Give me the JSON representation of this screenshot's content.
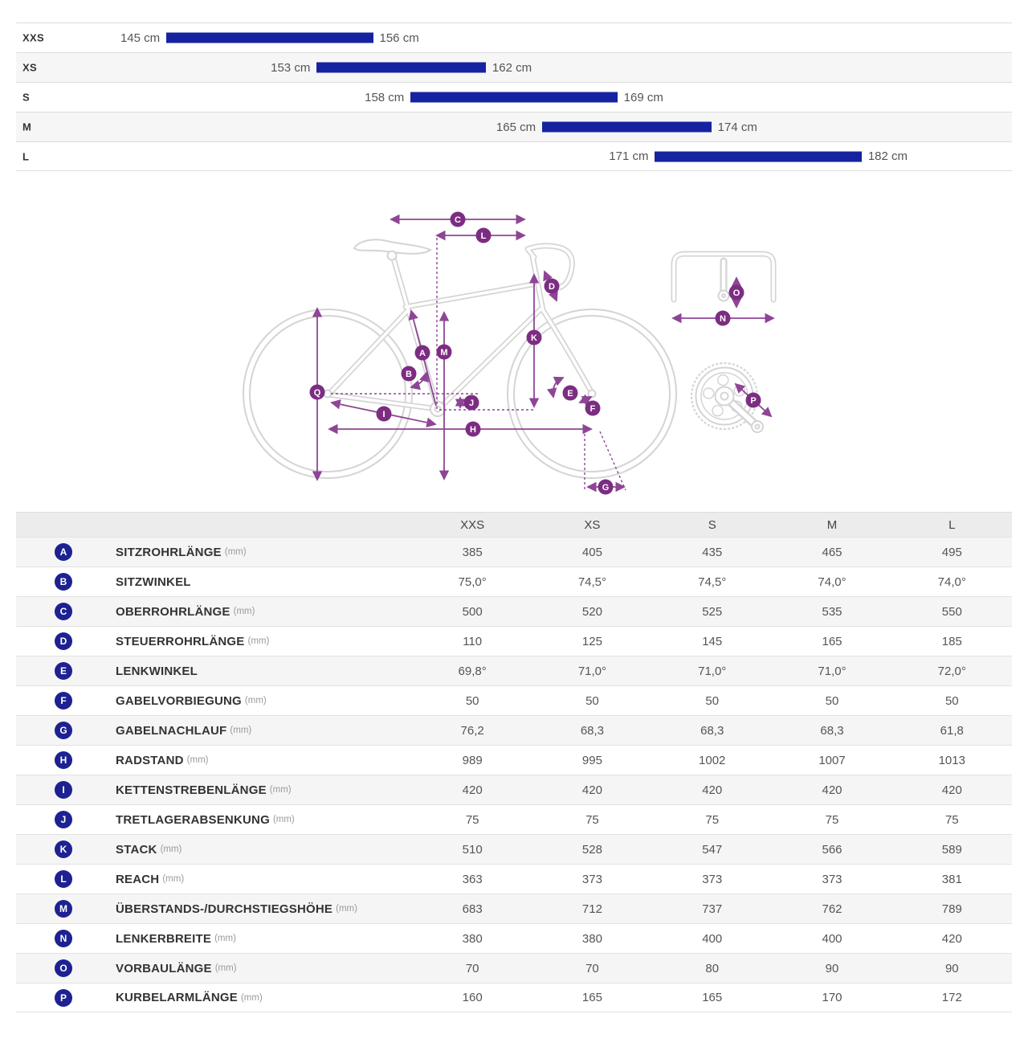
{
  "colors": {
    "bar_blue": "#1623a0",
    "badge_navy": "#1d2191",
    "diagram_purple": "#8e4595",
    "diagram_badge_purple": "#7c2d82",
    "bike_outline_gray": "#d4d4d4",
    "row_alt_gray": "#f5f5f5"
  },
  "diagram": {
    "letters": {
      "a": "A",
      "b": "B",
      "c": "C",
      "d": "D",
      "e": "E",
      "f": "F",
      "g": "G",
      "h": "H",
      "i": "I",
      "j": "J",
      "k": "K",
      "l": "L",
      "m": "M",
      "n": "N",
      "o": "O",
      "p": "P",
      "q": "Q"
    }
  },
  "chart_data": [
    {
      "type": "bar",
      "subtype": "horizontal-range",
      "title": "",
      "xlabel": "",
      "ylabel": "",
      "x_unit": "cm",
      "xlim": [
        137,
        190
      ],
      "grid": false,
      "legend": "none",
      "bar_color": "#1623a0",
      "categories": [
        "XXS",
        "XS",
        "S",
        "M",
        "L"
      ],
      "series": [
        {
          "name": "rider_height_range_cm",
          "ranges": [
            {
              "min": 145,
              "max": 156
            },
            {
              "min": 153,
              "max": 162
            },
            {
              "min": 158,
              "max": 169
            },
            {
              "min": 165,
              "max": 174
            },
            {
              "min": 171,
              "max": 182
            }
          ]
        }
      ],
      "labels": [
        {
          "min_label": "145 cm",
          "max_label": "156 cm"
        },
        {
          "min_label": "153 cm",
          "max_label": "162 cm"
        },
        {
          "min_label": "158 cm",
          "max_label": "169 cm"
        },
        {
          "min_label": "165 cm",
          "max_label": "174 cm"
        },
        {
          "min_label": "171 cm",
          "max_label": "182 cm"
        }
      ]
    },
    {
      "type": "table",
      "columns": [
        "",
        "XXS",
        "XS",
        "S",
        "M",
        "L"
      ],
      "rows": [
        {
          "letter": "A",
          "label": "SITZROHRLÄNGE",
          "unit": "(mm)",
          "values": [
            "385",
            "405",
            "435",
            "465",
            "495"
          ]
        },
        {
          "letter": "B",
          "label": "SITZWINKEL",
          "unit": "",
          "values": [
            "75,0°",
            "74,5°",
            "74,5°",
            "74,0°",
            "74,0°"
          ]
        },
        {
          "letter": "C",
          "label": "OBERROHRLÄNGE",
          "unit": "(mm)",
          "values": [
            "500",
            "520",
            "525",
            "535",
            "550"
          ]
        },
        {
          "letter": "D",
          "label": "STEUERROHRLÄNGE",
          "unit": "(mm)",
          "values": [
            "110",
            "125",
            "145",
            "165",
            "185"
          ]
        },
        {
          "letter": "E",
          "label": "LENKWINKEL",
          "unit": "",
          "values": [
            "69,8°",
            "71,0°",
            "71,0°",
            "71,0°",
            "72,0°"
          ]
        },
        {
          "letter": "F",
          "label": "GABELVORBIEGUNG",
          "unit": "(mm)",
          "values": [
            "50",
            "50",
            "50",
            "50",
            "50"
          ]
        },
        {
          "letter": "G",
          "label": "GABELNACHLAUF",
          "unit": "(mm)",
          "values": [
            "76,2",
            "68,3",
            "68,3",
            "68,3",
            "61,8"
          ]
        },
        {
          "letter": "H",
          "label": "RADSTAND",
          "unit": "(mm)",
          "values": [
            "989",
            "995",
            "1002",
            "1007",
            "1013"
          ]
        },
        {
          "letter": "I",
          "label": "KETTENSTREBENLÄNGE",
          "unit": "(mm)",
          "values": [
            "420",
            "420",
            "420",
            "420",
            "420"
          ]
        },
        {
          "letter": "J",
          "label": "TRETLAGERABSENKUNG",
          "unit": "(mm)",
          "values": [
            "75",
            "75",
            "75",
            "75",
            "75"
          ]
        },
        {
          "letter": "K",
          "label": "STACK",
          "unit": "(mm)",
          "values": [
            "510",
            "528",
            "547",
            "566",
            "589"
          ]
        },
        {
          "letter": "L",
          "label": "REACH",
          "unit": "(mm)",
          "values": [
            "363",
            "373",
            "373",
            "373",
            "381"
          ]
        },
        {
          "letter": "M",
          "label": "ÜBERSTANDS-/DURCHSTIEGSHÖHE",
          "unit": "(mm)",
          "values": [
            "683",
            "712",
            "737",
            "762",
            "789"
          ]
        },
        {
          "letter": "N",
          "label": "LENKERBREITE",
          "unit": "(mm)",
          "values": [
            "380",
            "380",
            "400",
            "400",
            "420"
          ]
        },
        {
          "letter": "O",
          "label": "VORBAULÄNGE",
          "unit": "(mm)",
          "values": [
            "70",
            "70",
            "80",
            "90",
            "90"
          ]
        },
        {
          "letter": "P",
          "label": "KURBELARMLÄNGE",
          "unit": "(mm)",
          "values": [
            "160",
            "165",
            "165",
            "170",
            "172"
          ]
        }
      ]
    }
  ]
}
